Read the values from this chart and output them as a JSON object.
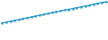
{
  "x": [
    0,
    1,
    2,
    3,
    4,
    5,
    6,
    7,
    8,
    9,
    10,
    11,
    12,
    13,
    14,
    15,
    16,
    17,
    18,
    19,
    20,
    21,
    22,
    23,
    24,
    25
  ],
  "y": [
    0.5,
    0.6,
    0.7,
    0.8,
    0.9,
    1.0,
    1.1,
    1.2,
    1.3,
    1.4,
    1.5,
    1.6,
    1.7,
    1.8,
    1.9,
    2.0,
    2.1,
    2.2,
    2.3,
    2.4,
    2.5,
    2.6,
    2.7,
    2.8,
    2.9,
    3.0
  ],
  "line_color": "#2196c4",
  "background_color": "#ffffff",
  "plot_bg_color": "#000000",
  "line_width": 0.9,
  "marker_size": 1.8,
  "figsize": [
    1.2,
    0.45
  ],
  "dpi": 100,
  "ylim_min": -1.5,
  "ylim_max": 3.2,
  "xlim_min": -0.5,
  "xlim_max": 25.5
}
